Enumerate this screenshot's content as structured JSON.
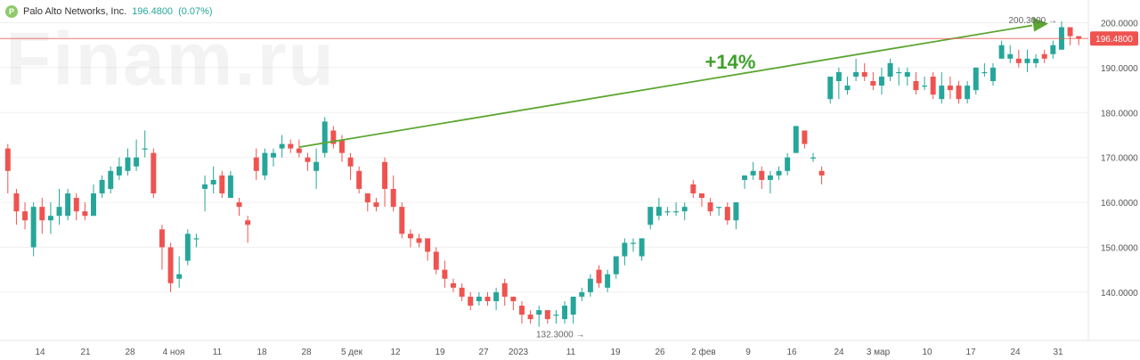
{
  "legend": {
    "logo_letter": "P",
    "name": "Palo Alto Networks, Inc.",
    "price": "196.4800",
    "change": "(0.07%)"
  },
  "watermark": "Finam.ru",
  "colors": {
    "up": "#26a69a",
    "down": "#ef5350",
    "trend": "#5aa631",
    "price_line": "#ef5350"
  },
  "chart_data": {
    "type": "candlestick",
    "title": "",
    "ylim": [
      130,
      203
    ],
    "y_ticks": [
      "140.0000",
      "150.0000",
      "160.0000",
      "170.0000",
      "180.0000",
      "190.0000",
      "200.0000"
    ],
    "x_tick_labels": [
      "14",
      "21",
      "28",
      "4 ноя",
      "11",
      "18",
      "28",
      "5 дек",
      "12",
      "19",
      "27",
      "2023",
      "11",
      "19",
      "26",
      "2 фев",
      "9",
      "16",
      "24",
      "3 мар",
      "10",
      "17",
      "24",
      "31"
    ],
    "last_price_label": "196.4800",
    "last_price": 196.48,
    "high_label": "200.3000",
    "high_value": 200.3,
    "low_label": "132.3000",
    "low_value": 132.3,
    "annotation": "+14%",
    "trend_line": {
      "from_index": 34,
      "from_value": 172.3,
      "to_index": 120,
      "to_value": 199.8
    },
    "candles": [
      [
        172,
        167,
        173,
        162
      ],
      [
        162,
        158,
        163,
        155
      ],
      [
        158,
        156,
        160,
        154
      ],
      [
        150,
        159,
        160,
        148
      ],
      [
        159,
        156,
        161,
        153
      ],
      [
        156,
        157,
        160,
        153
      ],
      [
        157,
        159,
        163,
        155
      ],
      [
        157,
        162,
        163,
        156
      ],
      [
        161,
        158,
        162,
        156
      ],
      [
        158,
        157,
        160,
        156
      ],
      [
        157,
        162,
        164,
        157
      ],
      [
        162,
        165,
        166,
        161
      ],
      [
        163,
        167,
        168,
        162
      ],
      [
        166,
        168,
        170,
        165
      ],
      [
        167,
        170,
        172,
        166
      ],
      [
        168,
        170,
        174,
        167
      ],
      [
        172,
        172,
        176,
        170
      ],
      [
        171,
        162,
        172,
        161
      ],
      [
        154,
        150,
        155,
        145
      ],
      [
        150,
        142,
        151,
        140
      ],
      [
        143,
        144,
        148,
        141
      ],
      [
        147,
        153,
        154,
        146
      ],
      [
        152,
        152,
        153,
        150
      ],
      [
        163,
        164,
        166,
        158
      ],
      [
        164,
        165,
        168,
        162
      ],
      [
        166,
        162,
        167,
        161
      ],
      [
        161,
        166,
        167,
        161
      ],
      [
        160,
        159,
        161,
        157
      ],
      [
        156,
        155,
        157,
        151
      ],
      [
        170,
        167,
        172,
        165
      ],
      [
        166,
        171,
        172,
        165
      ],
      [
        170,
        171,
        172,
        168
      ],
      [
        172,
        173,
        175,
        170
      ],
      [
        173,
        172,
        174,
        171
      ],
      [
        172,
        171,
        174,
        170
      ],
      [
        170,
        169,
        171,
        167
      ],
      [
        167,
        169,
        172,
        163
      ],
      [
        171,
        178,
        179,
        170
      ],
      [
        176,
        173,
        177,
        172
      ],
      [
        174,
        171,
        175,
        169
      ],
      [
        170,
        168,
        171,
        165
      ],
      [
        167,
        163,
        168,
        162
      ],
      [
        162,
        160,
        162,
        158
      ],
      [
        160,
        159,
        161,
        158
      ],
      [
        169,
        163,
        170,
        159
      ],
      [
        163,
        159,
        166,
        158
      ],
      [
        159,
        153,
        160,
        152
      ],
      [
        153,
        152,
        154,
        150
      ],
      [
        152,
        151,
        153,
        150
      ],
      [
        152,
        149,
        152,
        147
      ],
      [
        149,
        145,
        150,
        144
      ],
      [
        145,
        143,
        147,
        141
      ],
      [
        142,
        141,
        143,
        140
      ],
      [
        141,
        139,
        142,
        138
      ],
      [
        139,
        137,
        140,
        136
      ],
      [
        138,
        139,
        140,
        137
      ],
      [
        139,
        138,
        140,
        137
      ],
      [
        138,
        140,
        141,
        136
      ],
      [
        142,
        139,
        143,
        137
      ],
      [
        139,
        138,
        139,
        136
      ],
      [
        137,
        135,
        138,
        133
      ],
      [
        135,
        134,
        136,
        133
      ],
      [
        135,
        136,
        137,
        132.3
      ],
      [
        136,
        134,
        136,
        133
      ],
      [
        135,
        135,
        136,
        133
      ],
      [
        134,
        137,
        138,
        133
      ],
      [
        135,
        139,
        139,
        133
      ],
      [
        139,
        140,
        141,
        138
      ],
      [
        140,
        143,
        144,
        139
      ],
      [
        145,
        142,
        146,
        141
      ],
      [
        141,
        144,
        145,
        140
      ],
      [
        144,
        148,
        148,
        143
      ],
      [
        148,
        151,
        152,
        146
      ],
      [
        151,
        151,
        152,
        149
      ],
      [
        148,
        152,
        152,
        147
      ],
      [
        155,
        159,
        159,
        154
      ],
      [
        157,
        159,
        161,
        156
      ],
      [
        158,
        158,
        159,
        157
      ],
      [
        158,
        158,
        160,
        157
      ],
      [
        158,
        159,
        160,
        156
      ],
      [
        164,
        162,
        165,
        161
      ],
      [
        162,
        161,
        162,
        159
      ],
      [
        160,
        158,
        161,
        157
      ],
      [
        159,
        159,
        159,
        157
      ],
      [
        159,
        156,
        160,
        155
      ],
      [
        156,
        160,
        160,
        154
      ],
      [
        165,
        166,
        166,
        163
      ],
      [
        166,
        167,
        169,
        165
      ],
      [
        167,
        165,
        168,
        163
      ],
      [
        165,
        166,
        167,
        162
      ],
      [
        166,
        167,
        168,
        165
      ],
      [
        167,
        170,
        171,
        166
      ],
      [
        171,
        177,
        177,
        171
      ],
      [
        176,
        173,
        176,
        172
      ],
      [
        170,
        170,
        171,
        169
      ],
      [
        167,
        166,
        168,
        164
      ],
      [
        183,
        188,
        188,
        182
      ],
      [
        187,
        189,
        190,
        183
      ],
      [
        185,
        186,
        188,
        184
      ],
      [
        188,
        189,
        192,
        187
      ],
      [
        189,
        188,
        191,
        187
      ],
      [
        187,
        186,
        189,
        185
      ],
      [
        186,
        188,
        190,
        184
      ],
      [
        188,
        191,
        192,
        187
      ],
      [
        189,
        189,
        190,
        186
      ],
      [
        188,
        189,
        190,
        186
      ],
      [
        187,
        185,
        189,
        184
      ],
      [
        186,
        186,
        188,
        185
      ],
      [
        188,
        184,
        189,
        183
      ],
      [
        183,
        186,
        189,
        182
      ],
      [
        186,
        185,
        188,
        183
      ],
      [
        186,
        183,
        187,
        182
      ],
      [
        183,
        186,
        187,
        182
      ],
      [
        185,
        190,
        190,
        184
      ],
      [
        189,
        189,
        191,
        188
      ],
      [
        187,
        190,
        191,
        186
      ],
      [
        192,
        195,
        196,
        192
      ],
      [
        192,
        193,
        195,
        191
      ],
      [
        192,
        191,
        194,
        190
      ],
      [
        191,
        192,
        194,
        189
      ],
      [
        191,
        192,
        193,
        190
      ],
      [
        193,
        192,
        194,
        191
      ],
      [
        193,
        195,
        196,
        192
      ],
      [
        194,
        199,
        200.3,
        194
      ],
      [
        199,
        197,
        199,
        195
      ],
      [
        197,
        196.48,
        197,
        195
      ]
    ]
  }
}
